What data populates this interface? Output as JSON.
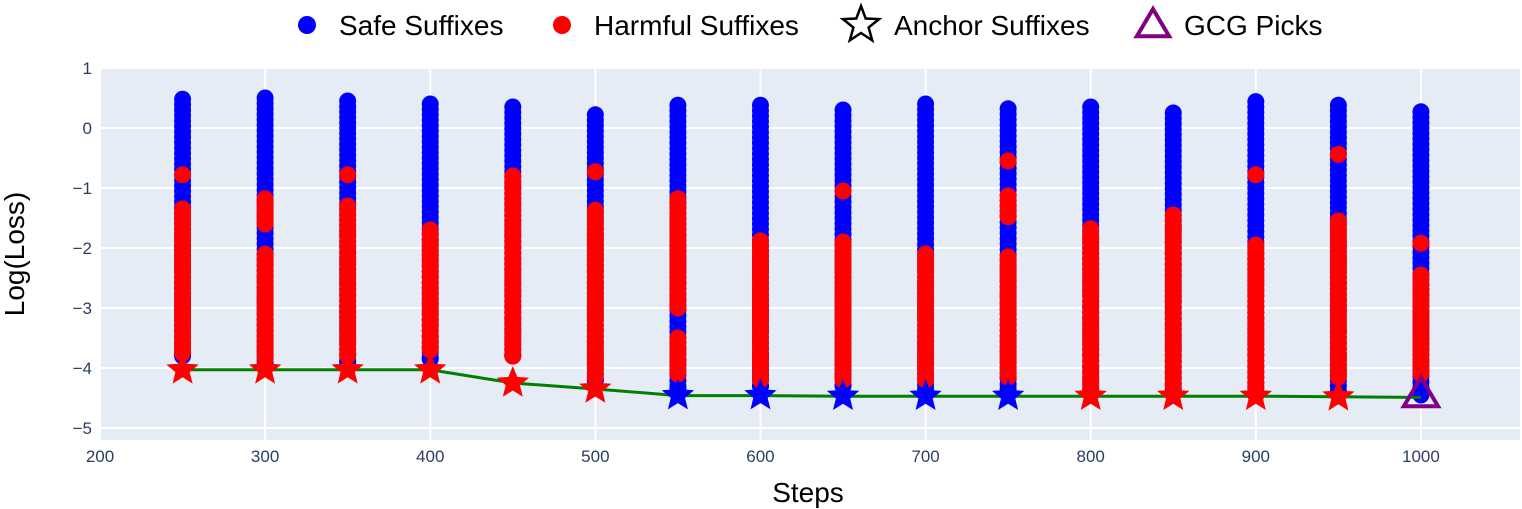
{
  "chart_data": {
    "type": "scatter",
    "title": "",
    "xlabel": "Steps",
    "ylabel": "Log(Loss)",
    "xlim": [
      200,
      1060
    ],
    "ylim": [
      -5.2,
      1.0
    ],
    "xticks": [
      200,
      300,
      400,
      500,
      600,
      700,
      800,
      900,
      1000
    ],
    "yticks": [
      1,
      0,
      -1,
      -2,
      -3,
      -4,
      -5
    ],
    "ytick_labels": [
      "1",
      "0",
      "−1",
      "−2",
      "−3",
      "−4",
      "−5"
    ],
    "grid": true,
    "legend_position": "top",
    "legend": [
      {
        "name": "Safe Suffixes",
        "marker": "circle",
        "color": "#0000ff"
      },
      {
        "name": "Harmful Suffixes",
        "marker": "circle",
        "color": "#ff0000"
      },
      {
        "name": "Anchor Suffixes",
        "marker": "star-open",
        "color": "#000000"
      },
      {
        "name": "GCG Picks",
        "marker": "triangle-open",
        "color": "#800080"
      }
    ],
    "steps": [
      250,
      300,
      350,
      400,
      450,
      500,
      550,
      600,
      650,
      700,
      750,
      800,
      850,
      900,
      950,
      1000
    ],
    "safe_ranges": [
      [
        -3.8,
        0.48
      ],
      [
        -3.9,
        0.5
      ],
      [
        -3.9,
        0.45
      ],
      [
        -3.85,
        0.4
      ],
      [
        -3.8,
        0.35
      ],
      [
        -4.2,
        0.22
      ],
      [
        -4.35,
        0.38
      ],
      [
        -4.3,
        0.38
      ],
      [
        -4.3,
        0.3
      ],
      [
        -4.35,
        0.4
      ],
      [
        -4.35,
        0.32
      ],
      [
        -4.4,
        0.35
      ],
      [
        -4.4,
        0.25
      ],
      [
        -4.45,
        0.44
      ],
      [
        -4.4,
        0.38
      ],
      [
        -4.45,
        0.27
      ]
    ],
    "harmful_points": [
      [
        -0.78,
        -1.35,
        -1.6,
        -1.8,
        -2.0,
        -2.2,
        -2.4,
        -2.6,
        -2.8,
        -3.0,
        -3.2,
        -3.4,
        -3.6,
        -3.75
      ],
      [
        -1.18,
        -1.45,
        -1.6,
        -2.1,
        -2.3,
        -2.5,
        -2.7,
        -2.9,
        -3.1,
        -3.3,
        -3.5,
        -3.7,
        -3.85
      ],
      [
        -0.78,
        -1.3,
        -1.6,
        -1.8,
        -2.0,
        -2.2,
        -2.4,
        -2.6,
        -2.8,
        -3.0,
        -3.2,
        -3.4,
        -3.6,
        -3.8
      ],
      [
        -1.7,
        -1.9,
        -2.1,
        -2.3,
        -2.5,
        -2.7,
        -2.9,
        -3.1,
        -3.3,
        -3.5,
        -3.7
      ],
      [
        -0.8,
        -1.0,
        -1.3,
        -1.6,
        -1.8,
        -2.0,
        -2.2,
        -2.4,
        -2.6,
        -2.8,
        -3.0,
        -3.2,
        -3.4,
        -3.6,
        -3.8
      ],
      [
        -0.73,
        -1.37,
        -1.8,
        -2.0,
        -2.2,
        -2.4,
        -2.6,
        -2.8,
        -3.0,
        -3.2,
        -3.4,
        -3.6,
        -3.8,
        -4.0,
        -4.15
      ],
      [
        -1.18,
        -1.55,
        -1.8,
        -2.0,
        -2.2,
        -2.4,
        -2.6,
        -2.8,
        -3.0,
        -3.5,
        -3.7,
        -3.9,
        -4.1
      ],
      [
        -1.88,
        -2.2,
        -2.4,
        -2.6,
        -2.8,
        -3.0,
        -3.2,
        -3.4,
        -3.6,
        -3.8,
        -4.0,
        -4.2
      ],
      [
        -1.05,
        -1.9,
        -2.2,
        -2.4,
        -2.6,
        -2.8,
        -3.0,
        -3.2,
        -3.4,
        -3.6,
        -3.8,
        -4.0,
        -4.2
      ],
      [
        -2.1,
        -2.4,
        -2.65,
        -2.8,
        -3.0,
        -3.2,
        -3.4,
        -3.6,
        -3.8,
        -4.0,
        -4.2
      ],
      [
        -0.55,
        -1.13,
        -1.48,
        -2.15,
        -2.35,
        -2.55,
        -2.8,
        -3.1,
        -3.3,
        -3.5,
        -3.7,
        -3.9,
        -4.15
      ],
      [
        -1.68,
        -1.85,
        -2.2,
        -2.4,
        -2.6,
        -2.8,
        -3.0,
        -3.2,
        -3.4,
        -3.6,
        -3.8,
        -4.0,
        -4.2,
        -4.35
      ],
      [
        -1.45,
        -1.7,
        -1.9,
        -2.1,
        -2.3,
        -2.5,
        -2.7,
        -2.9,
        -3.1,
        -3.3,
        -3.5,
        -3.7,
        -3.9,
        -4.1,
        -4.3
      ],
      [
        -0.78,
        -1.95,
        -2.2,
        -2.4,
        -2.6,
        -2.8,
        -3.0,
        -3.2,
        -3.4,
        -3.6,
        -3.8,
        -4.0,
        -4.3
      ],
      [
        -0.44,
        -1.55,
        -1.75,
        -2.0,
        -2.2,
        -2.4,
        -2.6,
        -2.8,
        -3.0,
        -3.2,
        -3.4,
        -3.6,
        -3.8,
        -4.0,
        -4.15
      ],
      [
        -1.92,
        -2.45,
        -2.9,
        -3.1,
        -3.3,
        -3.5,
        -3.7,
        -3.9,
        -4.1
      ]
    ],
    "anchor_line_values": [
      -4.03,
      -4.03,
      -4.03,
      -4.03,
      -4.25,
      -4.35,
      -4.46,
      -4.46,
      -4.47,
      -4.47,
      -4.47,
      -4.47,
      -4.47,
      -4.47,
      -4.48,
      -4.49
    ],
    "anchor_colors": [
      "red",
      "red",
      "red",
      "red",
      "red",
      "red",
      "blue",
      "blue",
      "blue",
      "blue",
      "blue",
      "red",
      "red",
      "red",
      "red",
      "purple"
    ],
    "line_color": "#008000",
    "gcg_pick": {
      "x": 1000,
      "y": -4.49
    }
  }
}
